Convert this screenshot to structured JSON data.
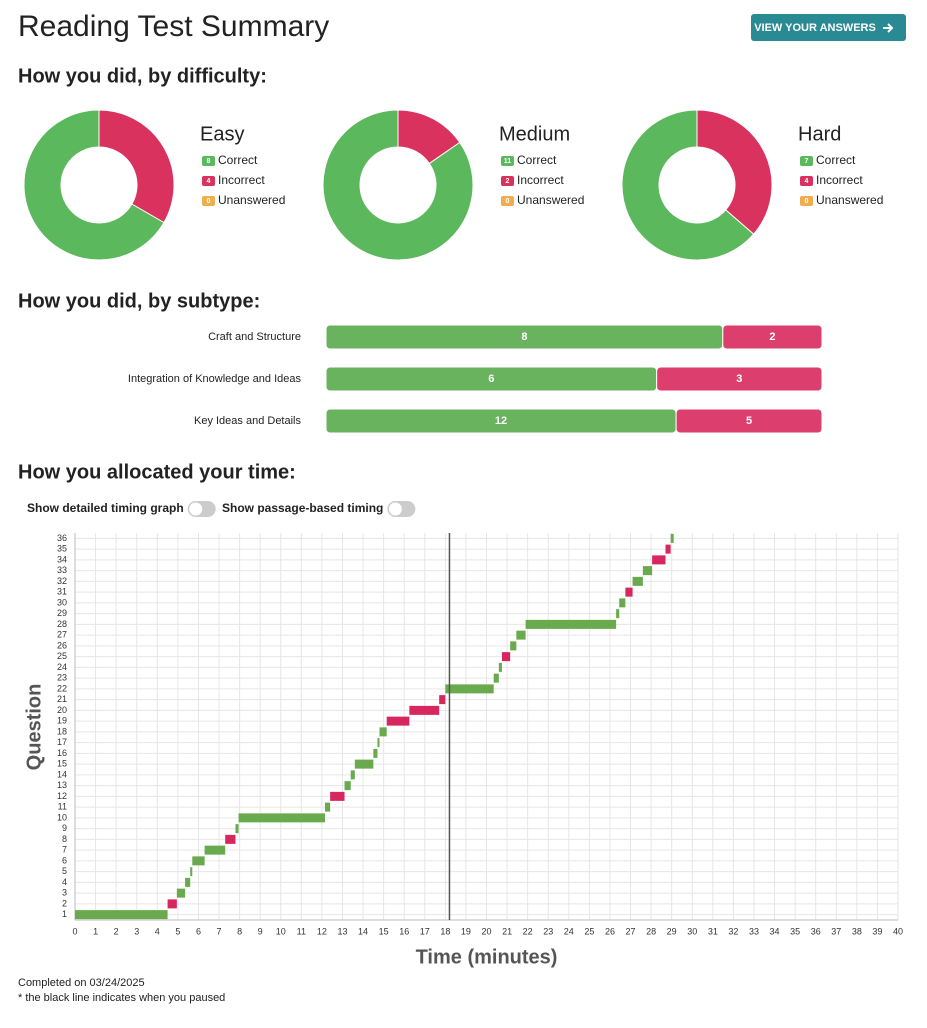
{
  "header": {
    "title": "Reading Test Summary",
    "button": "VIEW YOUR ANSWERS"
  },
  "sections": {
    "difficulty": "How you did, by difficulty:",
    "subtype": "How you did, by subtype:",
    "time": "How you allocated your time:"
  },
  "toggles": [
    "Show detailed timing graph",
    "Show passage-based timing"
  ],
  "footer": [
    "Completed on 03/24/2025",
    "* the black line indicates when you paused"
  ],
  "chart_data": [
    {
      "type": "donut",
      "title": "Easy",
      "categories": [
        "Correct",
        "Incorrect",
        "Unanswered"
      ],
      "values": [
        8,
        4,
        0
      ],
      "colors": [
        "#5cb85c",
        "#d9325f",
        "#f0ad4e"
      ]
    },
    {
      "type": "donut",
      "title": "Medium",
      "categories": [
        "Correct",
        "Incorrect",
        "Unanswered"
      ],
      "values": [
        11,
        2,
        0
      ],
      "colors": [
        "#5cb85c",
        "#d9325f",
        "#f0ad4e"
      ]
    },
    {
      "type": "donut",
      "title": "Hard",
      "categories": [
        "Correct",
        "Incorrect",
        "Unanswered"
      ],
      "values": [
        7,
        4,
        0
      ],
      "colors": [
        "#5cb85c",
        "#d9325f",
        "#f0ad4e"
      ]
    },
    {
      "type": "stacked-hbar",
      "categories": [
        "Craft and Structure",
        "Integration of Knowledge and Ideas",
        "Key Ideas and Details"
      ],
      "series": [
        {
          "color": "#6ab35e",
          "values": [
            8,
            6,
            12
          ]
        },
        {
          "color": "#dc3f6d",
          "values": [
            2,
            3,
            5
          ]
        }
      ]
    },
    {
      "type": "timeline",
      "xlabel": "Time (minutes)",
      "ylabel": "Question",
      "categories": [
        "1",
        "2",
        "3",
        "4",
        "5",
        "6",
        "7",
        "8",
        "9",
        "10",
        "11",
        "12",
        "13",
        "14",
        "15",
        "16",
        "17",
        "18",
        "19",
        "20",
        "21",
        "22",
        "23",
        "24",
        "25",
        "26",
        "27",
        "28",
        "29",
        "30",
        "31",
        "32",
        "33",
        "34",
        "35",
        "36"
      ],
      "start": [
        0,
        4.5,
        4.95,
        5.35,
        5.6,
        5.7,
        6.3,
        7.3,
        7.8,
        7.95,
        12.15,
        12.4,
        13.1,
        13.4,
        13.6,
        14.5,
        14.7,
        14.8,
        15.15,
        16.25,
        17.7,
        18.0,
        20.35,
        20.6,
        20.75,
        21.15,
        21.45,
        21.9,
        26.3,
        26.45,
        26.75,
        27.1,
        27.6,
        28.05,
        28.7,
        28.95
      ],
      "end": [
        4.5,
        4.95,
        5.35,
        5.6,
        5.7,
        6.3,
        7.3,
        7.8,
        7.95,
        12.15,
        12.4,
        13.1,
        13.4,
        13.6,
        14.5,
        14.7,
        14.8,
        15.15,
        16.25,
        17.7,
        18.0,
        20.35,
        20.6,
        20.75,
        21.15,
        21.45,
        21.9,
        26.3,
        26.45,
        26.75,
        27.1,
        27.6,
        28.05,
        28.7,
        28.95,
        29.1
      ],
      "colors": [
        "#6aaa4f",
        "#d6285f",
        "#6aaa4f",
        "#6aaa4f",
        "#6aaa4f",
        "#6aaa4f",
        "#6aaa4f",
        "#d6285f",
        "#6aaa4f",
        "#6aaa4f",
        "#6aaa4f",
        "#d6285f",
        "#6aaa4f",
        "#6aaa4f",
        "#6aaa4f",
        "#6aaa4f",
        "#6aaa4f",
        "#6aaa4f",
        "#d6285f",
        "#d6285f",
        "#d6285f",
        "#6aaa4f",
        "#6aaa4f",
        "#6aaa4f",
        "#d6285f",
        "#6aaa4f",
        "#6aaa4f",
        "#6aaa4f",
        "#6aaa4f",
        "#6aaa4f",
        "#d6285f",
        "#6aaa4f",
        "#6aaa4f",
        "#d6285f",
        "#d6285f",
        "#6aaa4f"
      ],
      "xlim": [
        0,
        40
      ],
      "xticks": [
        0,
        1,
        2,
        3,
        4,
        5,
        6,
        7,
        8,
        9,
        10,
        11,
        12,
        13,
        14,
        15,
        16,
        17,
        18,
        19,
        20,
        21,
        22,
        23,
        24,
        25,
        26,
        27,
        28,
        29,
        30,
        31,
        32,
        33,
        34,
        35,
        36,
        37,
        38,
        39,
        40
      ],
      "pause": 18.2,
      "grid": true
    }
  ]
}
